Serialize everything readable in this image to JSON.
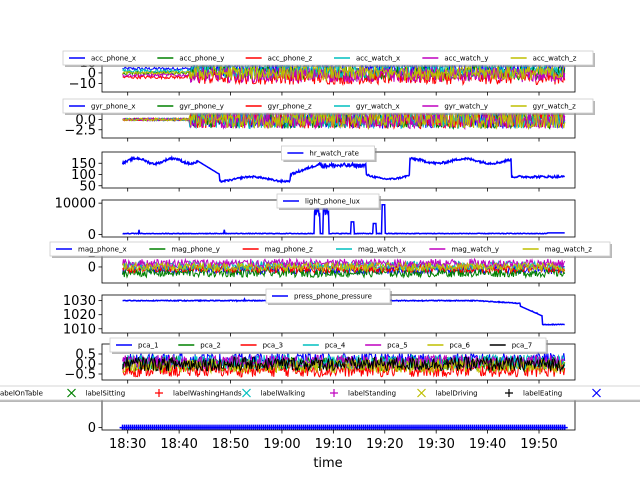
{
  "figure": {
    "xlabel": "time",
    "x_ticks": [
      "18:30",
      "18:40",
      "18:50",
      "19:00",
      "19:10",
      "19:20",
      "19:30",
      "19:40",
      "19:50"
    ],
    "x_range": [
      "18:25",
      "19:57"
    ]
  },
  "chart_data": [
    {
      "type": "line",
      "title": "",
      "ylim": [
        -18,
        15
      ],
      "y_ticks": [
        10,
        0,
        -10
      ],
      "legend": "top",
      "series": [
        {
          "name": "acc_phone_x",
          "color": "#0000ff"
        },
        {
          "name": "acc_phone_y",
          "color": "#008000"
        },
        {
          "name": "acc_phone_z",
          "color": "#ff0000"
        },
        {
          "name": "acc_watch_x",
          "color": "#00bfbf"
        },
        {
          "name": "acc_watch_y",
          "color": "#bf00bf"
        },
        {
          "name": "acc_watch_z",
          "color": "#bfbf00"
        }
      ]
    },
    {
      "type": "line",
      "ylim": [
        -4.5,
        3.5
      ],
      "y_ticks": [
        "2.5",
        "0.0",
        "-2.5"
      ],
      "legend": "top",
      "series": [
        {
          "name": "gyr_phone_x",
          "color": "#0000ff"
        },
        {
          "name": "gyr_phone_y",
          "color": "#008000"
        },
        {
          "name": "gyr_phone_z",
          "color": "#ff0000"
        },
        {
          "name": "gyr_watch_x",
          "color": "#00bfbf"
        },
        {
          "name": "gyr_watch_y",
          "color": "#bf00bf"
        },
        {
          "name": "gyr_watch_z",
          "color": "#bfbf00"
        }
      ]
    },
    {
      "type": "line",
      "ylim": [
        40,
        200
      ],
      "y_ticks": [
        150,
        100,
        50
      ],
      "legend": "top-center",
      "series": [
        {
          "name": "hr_watch_rate",
          "color": "#0000ff"
        }
      ]
    },
    {
      "type": "line",
      "ylim": [
        -800,
        11000
      ],
      "y_ticks": [
        10000,
        0
      ],
      "legend": "top-center",
      "series": [
        {
          "name": "light_phone_lux",
          "color": "#0000ff"
        }
      ]
    },
    {
      "type": "line",
      "ylim": [
        -2.2,
        2.6
      ],
      "y_ticks": [
        2,
        0
      ],
      "legend": "top",
      "series": [
        {
          "name": "mag_phone_x",
          "color": "#0000ff"
        },
        {
          "name": "mag_phone_y",
          "color": "#008000"
        },
        {
          "name": "mag_phone_z",
          "color": "#ff0000"
        },
        {
          "name": "mag_watch_x",
          "color": "#00bfbf"
        },
        {
          "name": "mag_watch_y",
          "color": "#bf00bf"
        },
        {
          "name": "mag_watch_z",
          "color": "#bfbf00"
        }
      ]
    },
    {
      "type": "line",
      "ylim": [
        1007,
        1034
      ],
      "y_ticks": [
        1030,
        1020,
        1010
      ],
      "legend": "top-center",
      "series": [
        {
          "name": "press_phone_pressure",
          "color": "#0000ff"
        }
      ]
    },
    {
      "type": "line",
      "ylim": [
        -0.8,
        1.0
      ],
      "y_ticks": [
        "0.5",
        "0.0",
        "-0.5"
      ],
      "legend": "top",
      "series": [
        {
          "name": "pca_1",
          "color": "#0000ff"
        },
        {
          "name": "pca_2",
          "color": "#008000"
        },
        {
          "name": "pca_3",
          "color": "#ff0000"
        },
        {
          "name": "pca_4",
          "color": "#00bfbf"
        },
        {
          "name": "pca_5",
          "color": "#bf00bf"
        },
        {
          "name": "pca_6",
          "color": "#bfbf00"
        },
        {
          "name": "pca_7",
          "color": "#000000"
        }
      ]
    },
    {
      "type": "scatter",
      "ylim": [
        -0.1,
        1.5
      ],
      "y_ticks": [
        0
      ],
      "legend": "top",
      "series": [
        {
          "name": "labelOnTable",
          "color": "#0000ff",
          "marker": "+"
        },
        {
          "name": "labelSitting",
          "color": "#008000",
          "marker": "x"
        },
        {
          "name": "labelWashingHands",
          "color": "#ff0000",
          "marker": "+"
        },
        {
          "name": "labelWalking",
          "color": "#00bfbf",
          "marker": "x"
        },
        {
          "name": "labelStanding",
          "color": "#bf00bf",
          "marker": "+"
        },
        {
          "name": "labelDriving",
          "color": "#bfbf00",
          "marker": "x"
        },
        {
          "name": "labelEating",
          "color": "#000000",
          "marker": "+"
        },
        {
          "name": "",
          "color": "#0000ff",
          "marker": "x"
        }
      ]
    }
  ]
}
